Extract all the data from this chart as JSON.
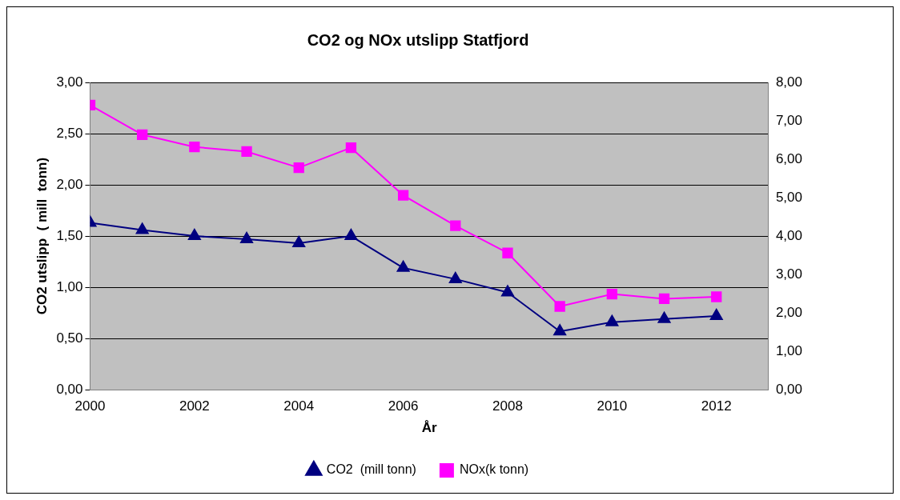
{
  "chart_data": {
    "type": "line",
    "title": "CO2 og NOx utslipp Statfjord",
    "xlabel": "År",
    "ylabel": "CO2 utslipp  ( mill  tonn)",
    "x": [
      2000,
      2001,
      2002,
      2003,
      2004,
      2005,
      2006,
      2007,
      2008,
      2009,
      2010,
      2011,
      2012
    ],
    "xlim": [
      2000,
      2013
    ],
    "xticks": [
      2000,
      2002,
      2004,
      2006,
      2008,
      2010,
      2012
    ],
    "ylim": [
      0,
      3
    ],
    "yticks": [
      {
        "value": 0,
        "label": "0,00"
      },
      {
        "value": 0.5,
        "label": "0,50"
      },
      {
        "value": 1,
        "label": "1,00"
      },
      {
        "value": 1.5,
        "label": "1,50"
      },
      {
        "value": 2,
        "label": "2,00"
      },
      {
        "value": 2.5,
        "label": "2,50"
      },
      {
        "value": 3,
        "label": "3,00"
      }
    ],
    "y2lim": [
      0,
      8
    ],
    "y2ticks": [
      {
        "value": 0,
        "label": "0,00"
      },
      {
        "value": 1,
        "label": "1,00"
      },
      {
        "value": 2,
        "label": "2,00"
      },
      {
        "value": 3,
        "label": "3,00"
      },
      {
        "value": 4,
        "label": "4,00"
      },
      {
        "value": 5,
        "label": "5,00"
      },
      {
        "value": 6,
        "label": "6,00"
      },
      {
        "value": 7,
        "label": "7,00"
      },
      {
        "value": 8,
        "label": "8,00"
      }
    ],
    "grid": "y",
    "legend": "bottom",
    "series": [
      {
        "name": "CO2  (mill tonn)",
        "color": "#000080",
        "marker": "triangle",
        "values": [
          1.63,
          1.56,
          1.5,
          1.47,
          1.43,
          1.5,
          1.19,
          1.08,
          0.95,
          0.57,
          0.66,
          0.69,
          0.72
        ]
      },
      {
        "name": "NOx(k tonn)",
        "color": "#ff00ff",
        "marker": "square",
        "axis": "y2",
        "values": [
          7.41,
          6.64,
          6.32,
          6.2,
          5.78,
          6.3,
          5.06,
          4.27,
          3.56,
          2.17,
          2.49,
          2.37,
          2.42
        ]
      }
    ]
  }
}
